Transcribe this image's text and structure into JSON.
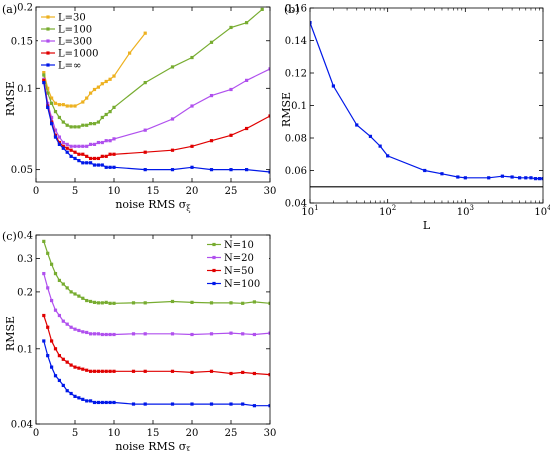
{
  "chart_data": [
    {
      "type": "line",
      "panel_label": "(a)",
      "xlabel": "noise RMS σ",
      "xlabel_sub": "ξ",
      "ylabel": "RMSE",
      "xscale": "linear",
      "yscale": "log",
      "xlim": [
        0,
        30
      ],
      "ylim": [
        0.045,
        0.2
      ],
      "xticks": [
        0,
        5,
        10,
        15,
        20,
        25,
        30
      ],
      "xtick_labels": [
        "0",
        "5",
        "10",
        "15",
        "20",
        "25",
        "30"
      ],
      "yticks": [
        0.05,
        0.1,
        0.15,
        0.2
      ],
      "ytick_labels": [
        "0.05",
        "0.1",
        "0.15",
        "0.2"
      ],
      "legend_position": "top-left",
      "series": [
        {
          "name": "L=30",
          "color": "#EDB120",
          "x": [
            1,
            1.5,
            2,
            2.5,
            3,
            3.5,
            4,
            4.5,
            5,
            6,
            6.5,
            7,
            7.5,
            8,
            8.5,
            9,
            9.5,
            10,
            12,
            14
          ],
          "y": [
            0.115,
            0.1,
            0.092,
            0.088,
            0.087,
            0.087,
            0.086,
            0.086,
            0.086,
            0.089,
            0.092,
            0.096,
            0.099,
            0.101,
            0.104,
            0.106,
            0.108,
            0.111,
            0.135,
            0.16
          ]
        },
        {
          "name": "L=100",
          "color": "#77AC30",
          "x": [
            1,
            1.5,
            2,
            2.5,
            3,
            3.5,
            4,
            4.5,
            5,
            5.5,
            6,
            6.5,
            7,
            7.5,
            8,
            8.5,
            9,
            9.5,
            10,
            14,
            17.5,
            20,
            22.5,
            25,
            27,
            29
          ],
          "y": [
            0.112,
            0.096,
            0.088,
            0.082,
            0.078,
            0.075,
            0.073,
            0.072,
            0.072,
            0.072,
            0.073,
            0.073,
            0.074,
            0.074,
            0.075,
            0.078,
            0.08,
            0.082,
            0.085,
            0.105,
            0.12,
            0.13,
            0.148,
            0.168,
            0.175,
            0.196
          ]
        },
        {
          "name": "L=300",
          "color": "#B050EE",
          "x": [
            1,
            1.5,
            2,
            2.5,
            3,
            3.5,
            4,
            4.5,
            5,
            5.5,
            6,
            6.5,
            7,
            7.5,
            8,
            8.5,
            9,
            9.5,
            10,
            14,
            17.5,
            20,
            22.5,
            25,
            27,
            30
          ],
          "y": [
            0.108,
            0.088,
            0.078,
            0.07,
            0.066,
            0.063,
            0.062,
            0.061,
            0.061,
            0.061,
            0.061,
            0.061,
            0.062,
            0.062,
            0.063,
            0.063,
            0.064,
            0.064,
            0.065,
            0.07,
            0.077,
            0.086,
            0.094,
            0.099,
            0.107,
            0.118
          ]
        },
        {
          "name": "L=1000",
          "color": "#E00000",
          "x": [
            1,
            1.5,
            2,
            2.5,
            3,
            3.5,
            4,
            4.5,
            5,
            5.5,
            6,
            6.5,
            7,
            7.5,
            8,
            8.5,
            9,
            9.5,
            10,
            14,
            17.5,
            20,
            22.5,
            25,
            27,
            30
          ],
          "y": [
            0.107,
            0.086,
            0.075,
            0.067,
            0.063,
            0.061,
            0.06,
            0.059,
            0.058,
            0.057,
            0.057,
            0.056,
            0.055,
            0.055,
            0.055,
            0.056,
            0.056,
            0.057,
            0.057,
            0.058,
            0.059,
            0.061,
            0.064,
            0.067,
            0.071,
            0.079
          ]
        },
        {
          "name": "L=∞",
          "color": "#0018E8",
          "x": [
            1,
            1.5,
            2,
            2.5,
            3,
            3.5,
            4,
            4.5,
            5,
            5.5,
            6,
            6.5,
            7,
            7.5,
            8,
            8.5,
            9,
            9.5,
            10,
            14,
            17.5,
            20,
            22.5,
            25,
            27,
            30
          ],
          "y": [
            0.105,
            0.085,
            0.074,
            0.066,
            0.062,
            0.06,
            0.058,
            0.056,
            0.055,
            0.054,
            0.053,
            0.053,
            0.053,
            0.052,
            0.052,
            0.052,
            0.051,
            0.051,
            0.051,
            0.05,
            0.05,
            0.051,
            0.05,
            0.05,
            0.05,
            0.049
          ]
        }
      ]
    },
    {
      "type": "line",
      "panel_label": "(b)",
      "xlabel": "L",
      "ylabel": "RMSE",
      "xscale": "log",
      "yscale": "linear",
      "xlim": [
        10,
        10000
      ],
      "ylim": [
        0.04,
        0.16
      ],
      "xticks": [
        10,
        100,
        1000,
        10000
      ],
      "xtick_labels": [
        "10",
        "10",
        "10",
        "10"
      ],
      "xtick_exponents": [
        "1",
        "2",
        "3",
        "4"
      ],
      "yticks": [
        0.04,
        0.06,
        0.08,
        0.1,
        0.12,
        0.14,
        0.16
      ],
      "ytick_labels": [
        "0.04",
        "0.06",
        "0.08",
        "0.1",
        "0.12",
        "0.14",
        "0.16"
      ],
      "series": [
        {
          "color": "#0018E8",
          "x": [
            10,
            20,
            40,
            60,
            80,
            100,
            300,
            500,
            800,
            1000,
            2000,
            3000,
            4000,
            5000,
            6000,
            7000,
            8000,
            9000,
            10000
          ],
          "y": [
            0.151,
            0.112,
            0.088,
            0.081,
            0.075,
            0.069,
            0.06,
            0.058,
            0.056,
            0.0555,
            0.0555,
            0.0565,
            0.056,
            0.0555,
            0.0555,
            0.0555,
            0.055,
            0.055,
            0.055
          ]
        },
        {
          "color": "#000000",
          "x": [
            10,
            10000
          ],
          "y": [
            0.05,
            0.05
          ]
        }
      ]
    },
    {
      "type": "line",
      "panel_label": "(c)",
      "xlabel": "noise RMS σ",
      "xlabel_sub": "ξ",
      "ylabel": "RMSE",
      "xscale": "linear",
      "yscale": "log",
      "xlim": [
        0,
        30
      ],
      "ylim": [
        0.04,
        0.4
      ],
      "xticks": [
        0,
        5,
        10,
        15,
        20,
        25,
        30
      ],
      "xtick_labels": [
        "0",
        "5",
        "10",
        "15",
        "20",
        "25",
        "30"
      ],
      "yticks": [
        0.04,
        0.1,
        0.2,
        0.3,
        0.4
      ],
      "ytick_labels": [
        "0.04",
        "0.1",
        "0.2",
        "0.3",
        "0.4"
      ],
      "legend_position": "top-right",
      "series": [
        {
          "name": "N=10",
          "color": "#77AC30",
          "x": [
            1,
            1.5,
            2,
            2.5,
            3,
            3.5,
            4,
            4.5,
            5,
            5.5,
            6,
            6.5,
            7,
            7.5,
            8,
            8.5,
            9,
            9.5,
            10,
            12.5,
            14,
            17.5,
            20,
            22.5,
            25,
            26.5,
            28,
            30
          ],
          "y": [
            0.37,
            0.32,
            0.28,
            0.25,
            0.23,
            0.22,
            0.21,
            0.2,
            0.195,
            0.19,
            0.185,
            0.18,
            0.178,
            0.176,
            0.175,
            0.175,
            0.176,
            0.174,
            0.174,
            0.175,
            0.175,
            0.178,
            0.176,
            0.175,
            0.175,
            0.174,
            0.177,
            0.174
          ]
        },
        {
          "name": "N=20",
          "color": "#B050EE",
          "x": [
            1,
            1.5,
            2,
            2.5,
            3,
            3.5,
            4,
            4.5,
            5,
            5.5,
            6,
            6.5,
            7,
            7.5,
            8,
            8.5,
            9,
            9.5,
            10,
            12.5,
            14,
            17.5,
            20,
            22.5,
            25,
            26.5,
            28,
            30
          ],
          "y": [
            0.25,
            0.21,
            0.18,
            0.16,
            0.15,
            0.14,
            0.135,
            0.13,
            0.127,
            0.125,
            0.123,
            0.122,
            0.12,
            0.12,
            0.12,
            0.119,
            0.119,
            0.119,
            0.119,
            0.12,
            0.12,
            0.12,
            0.119,
            0.12,
            0.121,
            0.12,
            0.119,
            0.121
          ]
        },
        {
          "name": "N=50",
          "color": "#E00000",
          "x": [
            1,
            1.5,
            2,
            2.5,
            3,
            3.5,
            4,
            4.5,
            5,
            5.5,
            6,
            6.5,
            7,
            7.5,
            8,
            8.5,
            9,
            9.5,
            10,
            12.5,
            14,
            17.5,
            20,
            22.5,
            25,
            26.5,
            28,
            30
          ],
          "y": [
            0.15,
            0.13,
            0.11,
            0.1,
            0.092,
            0.088,
            0.085,
            0.082,
            0.08,
            0.079,
            0.078,
            0.077,
            0.076,
            0.076,
            0.076,
            0.076,
            0.076,
            0.076,
            0.076,
            0.076,
            0.076,
            0.076,
            0.075,
            0.076,
            0.074,
            0.075,
            0.074,
            0.073
          ]
        },
        {
          "name": "N=100",
          "color": "#0018E8",
          "x": [
            1,
            1.5,
            2,
            2.5,
            3,
            3.5,
            4,
            4.5,
            5,
            5.5,
            6,
            6.5,
            7,
            7.5,
            8,
            8.5,
            9,
            9.5,
            10,
            12.5,
            14,
            17.5,
            20,
            22.5,
            25,
            26.5,
            28,
            30
          ],
          "y": [
            0.11,
            0.092,
            0.08,
            0.072,
            0.068,
            0.064,
            0.06,
            0.058,
            0.056,
            0.055,
            0.054,
            0.053,
            0.053,
            0.052,
            0.052,
            0.052,
            0.052,
            0.052,
            0.052,
            0.051,
            0.051,
            0.051,
            0.051,
            0.051,
            0.051,
            0.051,
            0.05,
            0.05
          ]
        }
      ]
    }
  ]
}
